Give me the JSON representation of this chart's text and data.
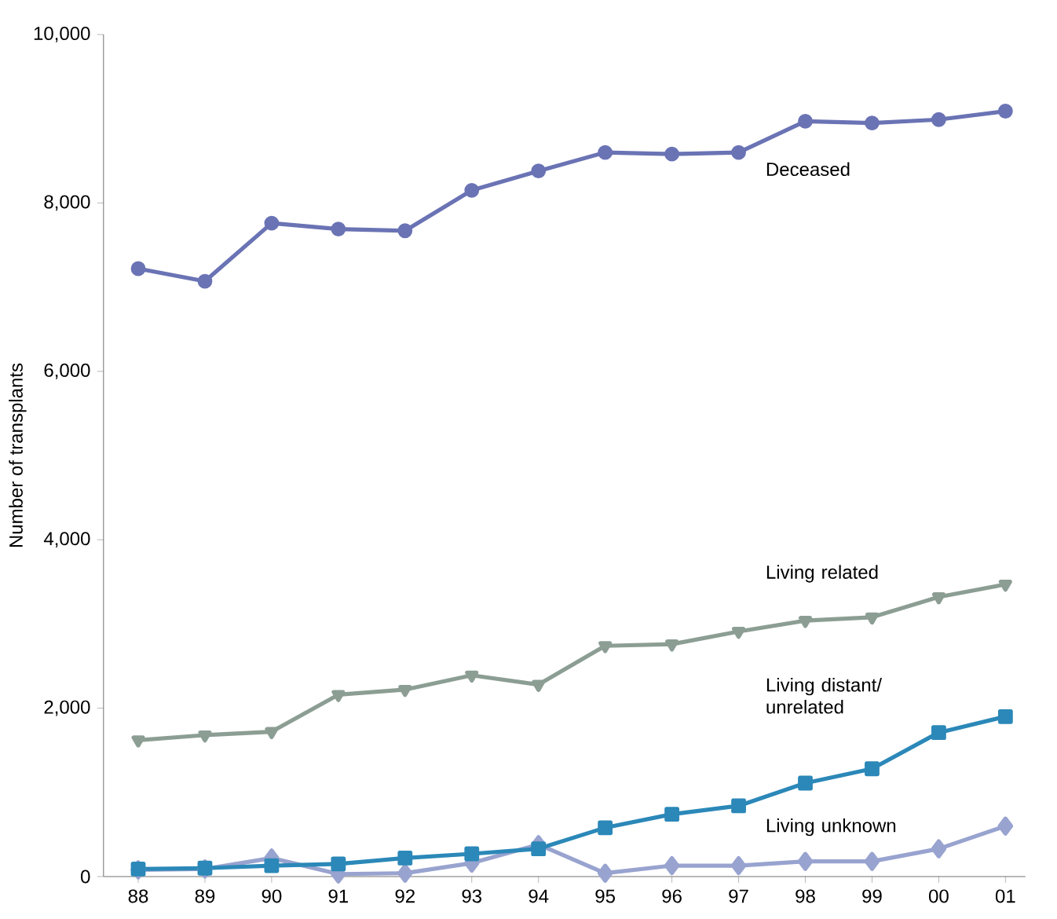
{
  "chart_data": {
    "type": "line",
    "ylabel": "Number of transplants",
    "categories": [
      "88",
      "89",
      "90",
      "91",
      "92",
      "93",
      "94",
      "95",
      "96",
      "97",
      "98",
      "99",
      "00",
      "01"
    ],
    "ylim": [
      0,
      10000
    ],
    "yticks": [
      0,
      {
        "value": 2000,
        "label": "2,000"
      },
      {
        "value": 4000,
        "label": "4,000"
      },
      {
        "value": 6000,
        "label": "6,000"
      },
      {
        "value": 8000,
        "label": "8,000"
      },
      {
        "value": 10000,
        "label": "10,000"
      }
    ],
    "grid": false,
    "legend": false,
    "series": [
      {
        "name": "Deceased",
        "color": "#6a73b4",
        "marker": "circle",
        "values": [
          7220,
          7070,
          7760,
          7690,
          7670,
          8150,
          8380,
          8600,
          8580,
          8600,
          8970,
          8950,
          8990,
          9090
        ]
      },
      {
        "name": "Living related",
        "color": "#8c9e94",
        "marker": "triangle",
        "values": [
          1620,
          1680,
          1720,
          2160,
          2220,
          2390,
          2280,
          2740,
          2760,
          2910,
          3040,
          3080,
          3320,
          3470
        ]
      },
      {
        "name": "Living distant/ unrelated",
        "color": "#2b88b8",
        "marker": "square",
        "values": [
          90,
          100,
          130,
          150,
          220,
          270,
          330,
          580,
          740,
          840,
          1110,
          1280,
          1710,
          1900
        ]
      },
      {
        "name": "Living unknown",
        "color": "#98a3cf",
        "marker": "diamond",
        "values": [
          80,
          90,
          220,
          30,
          40,
          160,
          380,
          40,
          130,
          130,
          180,
          180,
          330,
          600
        ]
      }
    ]
  }
}
